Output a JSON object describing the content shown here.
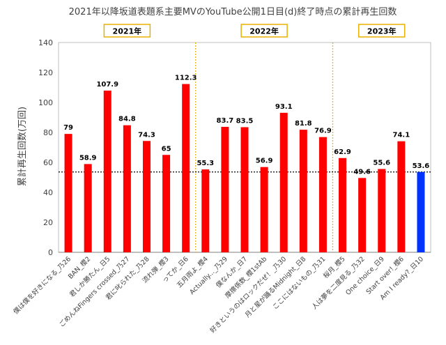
{
  "chart_data": {
    "type": "bar",
    "title": "2021年以降坂道表題系主要MVのYouTube公開1日目(d)終了時点の累計再生回数",
    "xlabel": "",
    "ylabel": "累計再生回数(万回)",
    "ylim": [
      0,
      140
    ],
    "yticks": [
      0,
      20,
      40,
      60,
      80,
      100,
      120,
      140
    ],
    "grid": false,
    "legend": "none",
    "reference_line": {
      "value": 53.6,
      "style": "dotted",
      "color": "#000000"
    },
    "year_groups": [
      {
        "label": "2021年",
        "from_index": 0,
        "to_index": 6
      },
      {
        "label": "2022年",
        "from_index": 7,
        "to_index": 13
      },
      {
        "label": "2023年",
        "from_index": 14,
        "to_index": 18
      }
    ],
    "categories": [
      "僕は僕を好きになる_乃26",
      "BAN_櫻2",
      "君しか勝たん_日5",
      "ごめんねFingers crossed_乃27",
      "君に叱られた_乃28",
      "流れ弾_櫻3",
      "ってか_日6",
      "五月雨よ_櫻4",
      "Actually..._乃29",
      "僕なんか_日7",
      "摩擦係数_櫻1stAb",
      "好きというのはロックだぜ！_乃30",
      "月と星が踊るMidnight_日8",
      "ここにはないもの_乃31",
      "桜月_櫻5",
      "人は夢を二度見る_乃32",
      "One choice_日9",
      "Start over!_櫻6",
      "Am I ready?_日10"
    ],
    "values": [
      79,
      58.9,
      107.9,
      84.8,
      74.3,
      65,
      112.3,
      55.3,
      83.7,
      83.5,
      56.9,
      93.1,
      81.8,
      76.9,
      62.9,
      49.6,
      55.6,
      74.1,
      53.6
    ],
    "value_labels": [
      "79",
      "58.9",
      "107.9",
      "84.8",
      "74.3",
      "65",
      "112.3",
      "55.3",
      "83.7",
      "83.5",
      "56.9",
      "93.1",
      "81.8",
      "76.9",
      "62.9",
      "49.6",
      "55.6",
      "74.1",
      "53.6"
    ],
    "colors": {
      "bar": "#ff0000",
      "highlight_bar": "#0033ff",
      "year_divider": "#e8b000",
      "year_box_border": "#e8b000",
      "axis": "#7f7f7f",
      "text": "#404040"
    },
    "highlight_index": 18
  }
}
